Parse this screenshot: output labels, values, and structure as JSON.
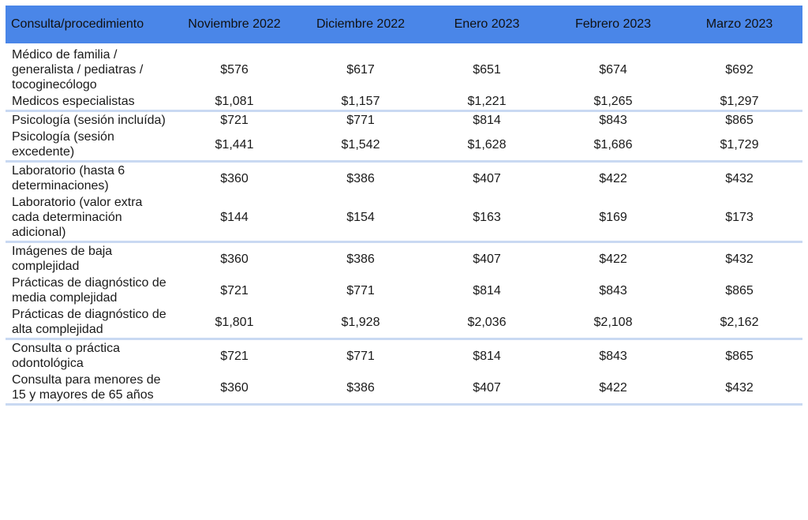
{
  "header": [
    "Consulta/procedimiento",
    "Noviembre 2022",
    "Diciembre 2022",
    "Enero 2023",
    "Febrero 2023",
    "Marzo 2023"
  ],
  "rows": [
    {
      "label": "Médico de familia / generalista / pediatras / tocoginecólogo",
      "values": [
        "$576",
        "$617",
        "$651",
        "$674",
        "$692"
      ]
    },
    {
      "label": "Medicos especialistas",
      "values": [
        "$1,081",
        "$1,157",
        "$1,221",
        "$1,265",
        "$1,297"
      ]
    },
    {
      "label": "Psicología (sesión incluída)",
      "values": [
        "$721",
        "$771",
        "$814",
        "$843",
        "$865"
      ]
    },
    {
      "label": "Psicología (sesión excedente)",
      "values": [
        "$1,441",
        "$1,542",
        "$1,628",
        "$1,686",
        "$1,729"
      ]
    },
    {
      "label": "Laboratorio (hasta 6 determinaciones)",
      "values": [
        "$360",
        "$386",
        "$407",
        "$422",
        "$432"
      ]
    },
    {
      "label": "Laboratorio (valor extra cada determinación adicional)",
      "values": [
        "$144",
        "$154",
        "$163",
        "$169",
        "$173"
      ]
    },
    {
      "label": "Imágenes de baja complejidad",
      "values": [
        "$360",
        "$386",
        "$407",
        "$422",
        "$432"
      ]
    },
    {
      "label": "Prácticas de diagnóstico de media complejidad",
      "values": [
        "$721",
        "$771",
        "$814",
        "$843",
        "$865"
      ]
    },
    {
      "label": "Prácticas de diagnóstico de alta complejidad",
      "values": [
        "$1,801",
        "$1,928",
        "$2,036",
        "$2,108",
        "$2,162"
      ]
    },
    {
      "label": "Consulta o práctica odontológica",
      "values": [
        "$721",
        "$771",
        "$814",
        "$843",
        "$865"
      ]
    },
    {
      "label": "Consulta para menores de 15 y mayores de 65 años",
      "values": [
        "$360",
        "$386",
        "$407",
        "$422",
        "$432"
      ]
    }
  ],
  "colors": {
    "header_bg": "#4a86e8",
    "separator": "#c9d9f2"
  }
}
